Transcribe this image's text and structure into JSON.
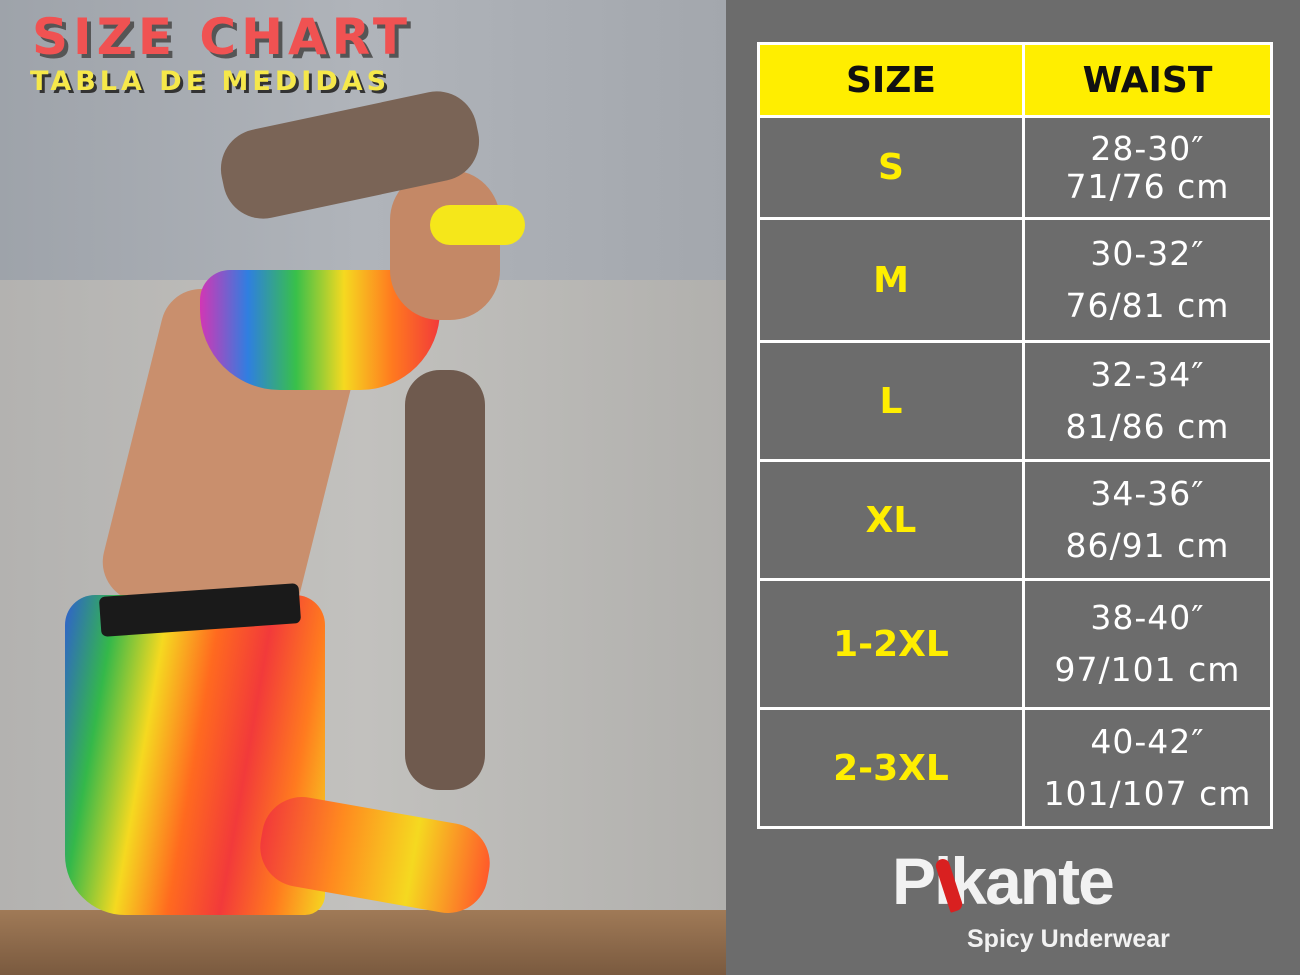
{
  "header": {
    "title": "SIZE CHART",
    "subtitle": "TABLA DE MEDIDAS"
  },
  "table": {
    "columns": [
      "SIZE",
      "WAIST"
    ],
    "rows": [
      {
        "size": "S",
        "inches": "28-30″",
        "cm": "71/76 cm"
      },
      {
        "size": "M",
        "inches": "30-32″",
        "cm": "76/81 cm"
      },
      {
        "size": "L",
        "inches": "32-34″",
        "cm": "81/86 cm"
      },
      {
        "size": "XL",
        "inches": "34-36″",
        "cm": "86/91 cm"
      },
      {
        "size": "1-2XL",
        "inches": "38-40″",
        "cm": "97/101 cm"
      },
      {
        "size": "2-3XL",
        "inches": "40-42″",
        "cm": "101/107 cm"
      }
    ]
  },
  "brand": {
    "name": "Pikante",
    "tagline": "Spicy Underwear"
  },
  "colors": {
    "accent_yellow": "#ffee00",
    "title_red": "#f05252",
    "panel_gray": "#6c6c6c"
  }
}
